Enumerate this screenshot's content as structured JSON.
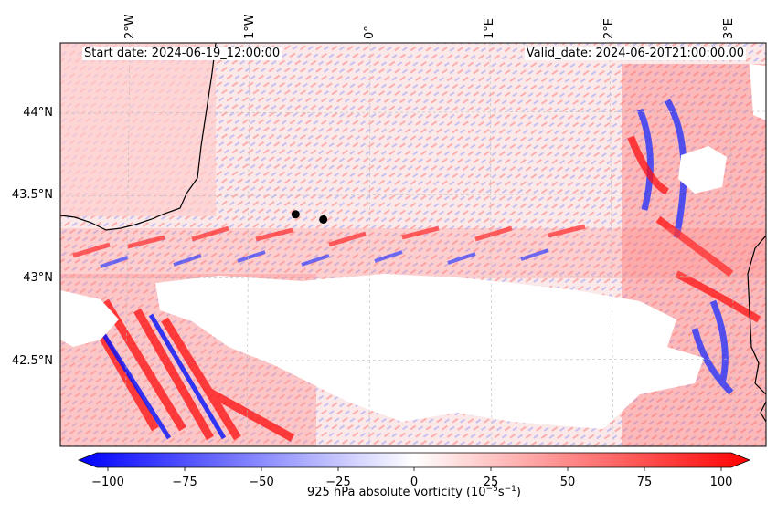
{
  "start_date": "Start date: 2024-06-19_12:00:00",
  "valid_date": "Valid_date: 2024-06-20T21:00:00.00",
  "lat_labels": [
    "44°N",
    "43.5°N",
    "43°N",
    "42.5°N"
  ],
  "lon_labels": [
    "2°W",
    "1°W",
    "0°",
    "1°E",
    "2°E",
    "3°E"
  ],
  "colorbar": {
    "ticks": [
      "−100",
      "−75",
      "−50",
      "−25",
      "0",
      "25",
      "50",
      "75",
      "100"
    ],
    "label_main": "925 hPa absolute vorticity (10",
    "label_exp1": "−5",
    "label_mid": "s",
    "label_exp2": "−1",
    "label_end": ")",
    "vmin": -100,
    "vmax": 100,
    "colors": {
      "low": "#0000ff",
      "mid": "#ffffff",
      "high": "#ff0000"
    }
  },
  "map": {
    "extent": {
      "lon_min": -2.55,
      "lon_max": 3.3,
      "lat_min": 42.0,
      "lat_max": 44.4
    },
    "markers": [
      {
        "lon": -0.6,
        "lat": 43.38
      },
      {
        "lon": -0.37,
        "lat": 43.35
      }
    ],
    "colors": {
      "coast": "#000000",
      "marker": "#000000",
      "grid": "#bbbbbb",
      "masked": "#ffffff"
    }
  }
}
